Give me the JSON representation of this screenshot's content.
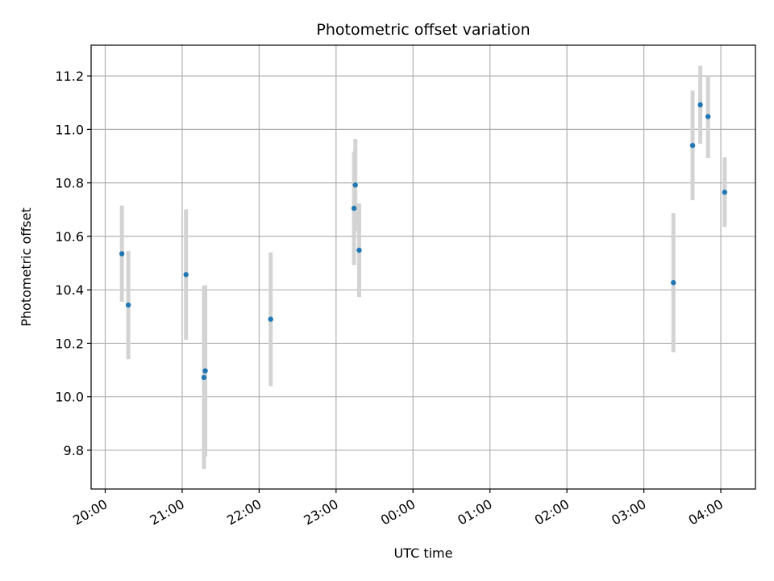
{
  "chart_data": {
    "type": "scatter",
    "title": "Photometric offset variation",
    "xlabel": "UTC time",
    "ylabel": "Photometric offset",
    "grid": true,
    "colors": {
      "point": "#1f77b4",
      "errorbar": "#d3d3d3",
      "grid": "#b0b0b0"
    },
    "xlim": [
      "19:49",
      "28:27"
    ],
    "ylim": [
      9.655,
      11.315
    ],
    "x_ticks": [
      {
        "t": "20:00",
        "label": "20:00"
      },
      {
        "t": "21:00",
        "label": "21:00"
      },
      {
        "t": "22:00",
        "label": "22:00"
      },
      {
        "t": "23:00",
        "label": "23:00"
      },
      {
        "t": "24:00",
        "label": "00:00"
      },
      {
        "t": "25:00",
        "label": "01:00"
      },
      {
        "t": "26:00",
        "label": "02:00"
      },
      {
        "t": "27:00",
        "label": "03:00"
      },
      {
        "t": "28:00",
        "label": "04:00"
      }
    ],
    "y_ticks": [
      {
        "v": 9.8,
        "label": "9.8"
      },
      {
        "v": 10.0,
        "label": "10.0"
      },
      {
        "v": 10.2,
        "label": "10.2"
      },
      {
        "v": 10.4,
        "label": "10.4"
      },
      {
        "v": 10.6,
        "label": "10.6"
      },
      {
        "v": 10.8,
        "label": "10.8"
      },
      {
        "v": 11.0,
        "label": "11.0"
      },
      {
        "v": 11.2,
        "label": "11.2"
      }
    ],
    "series": [
      {
        "points": [
          {
            "x": "20:13",
            "y": 10.535,
            "err_low": 10.355,
            "err_high": 10.715
          },
          {
            "x": "20:18",
            "y": 10.343,
            "err_low": 10.14,
            "err_high": 10.545
          },
          {
            "x": "21:03",
            "y": 10.457,
            "err_low": 10.213,
            "err_high": 10.701
          },
          {
            "x": "21:17",
            "y": 10.072,
            "err_low": 9.73,
            "err_high": 10.414
          },
          {
            "x": "21:18",
            "y": 10.097,
            "err_low": 9.777,
            "err_high": 10.417
          },
          {
            "x": "22:09",
            "y": 10.29,
            "err_low": 10.04,
            "err_high": 10.54
          },
          {
            "x": "23:14",
            "y": 10.705,
            "err_low": 10.493,
            "err_high": 10.917
          },
          {
            "x": "23:15",
            "y": 10.792,
            "err_low": 10.62,
            "err_high": 10.964
          },
          {
            "x": "23:18",
            "y": 10.548,
            "err_low": 10.373,
            "err_high": 10.723
          },
          {
            "x": "27:23",
            "y": 10.427,
            "err_low": 10.167,
            "err_high": 10.687
          },
          {
            "x": "27:38",
            "y": 10.94,
            "err_low": 10.735,
            "err_high": 11.145
          },
          {
            "x": "27:44",
            "y": 11.092,
            "err_low": 10.946,
            "err_high": 11.238
          },
          {
            "x": "27:50",
            "y": 11.048,
            "err_low": 10.893,
            "err_high": 11.203
          },
          {
            "x": "28:03",
            "y": 10.765,
            "err_low": 10.635,
            "err_high": 10.895
          }
        ]
      }
    ]
  }
}
